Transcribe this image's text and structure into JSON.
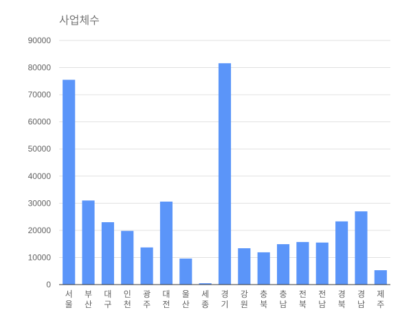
{
  "chart_data": {
    "type": "bar",
    "title": "사업체수",
    "xlabel": "",
    "ylabel": "",
    "categories": [
      "서울",
      "부산",
      "대구",
      "인천",
      "광주",
      "대전",
      "울산",
      "세종",
      "경기",
      "강원",
      "충북",
      "충남",
      "전북",
      "전남",
      "경북",
      "경남",
      "제주"
    ],
    "category_lines": [
      [
        "서",
        "울"
      ],
      [
        "부",
        "산"
      ],
      [
        "대",
        "구"
      ],
      [
        "인",
        "천"
      ],
      [
        "광",
        "주"
      ],
      [
        "대",
        "전"
      ],
      [
        "울",
        "산"
      ],
      [
        "세",
        "종"
      ],
      [
        "경",
        "기"
      ],
      [
        "강",
        "원"
      ],
      [
        "충",
        "북"
      ],
      [
        "충",
        "남"
      ],
      [
        "전",
        "북"
      ],
      [
        "전",
        "남"
      ],
      [
        "경",
        "북"
      ],
      [
        "경",
        "남"
      ],
      [
        "제",
        "주"
      ]
    ],
    "values": [
      75500,
      31000,
      23000,
      19800,
      13700,
      30600,
      9600,
      500,
      81600,
      13400,
      11900,
      14900,
      15700,
      15500,
      23300,
      27000,
      5300
    ],
    "ylim": [
      0,
      90000
    ],
    "yticks": [
      0,
      10000,
      20000,
      30000,
      40000,
      50000,
      60000,
      70000,
      80000,
      90000
    ],
    "grid": true,
    "legend": "none",
    "bar_color": "#5b95f9",
    "grid_color": "#e0e0e0",
    "axis_color": "#333333"
  }
}
